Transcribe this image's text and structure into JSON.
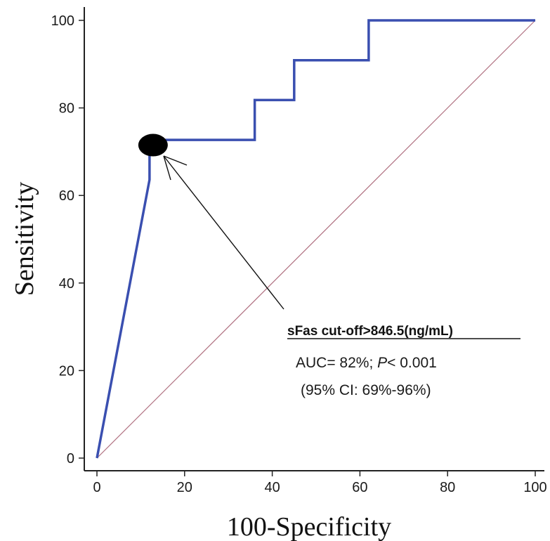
{
  "chart_data": {
    "type": "line",
    "xlabel": "100-Specificity",
    "ylabel": "Sensitivity",
    "xlim": [
      0,
      100
    ],
    "ylim": [
      0,
      100
    ],
    "x_ticks": [
      0,
      20,
      40,
      60,
      80,
      100
    ],
    "y_ticks": [
      0,
      20,
      40,
      60,
      80,
      100
    ],
    "grid": false,
    "series": [
      {
        "color": "#3a4fb0",
        "points": [
          {
            "x": 0,
            "y": 0
          },
          {
            "x": 12,
            "y": 63.6
          },
          {
            "x": 12,
            "y": 72.7
          },
          {
            "x": 36,
            "y": 72.7
          },
          {
            "x": 36,
            "y": 81.8
          },
          {
            "x": 45,
            "y": 81.8
          },
          {
            "x": 45,
            "y": 90.9
          },
          {
            "x": 62,
            "y": 90.9
          },
          {
            "x": 62,
            "y": 100
          },
          {
            "x": 100,
            "y": 100
          }
        ]
      }
    ],
    "reference_line": {
      "from": [
        0,
        0
      ],
      "to": [
        100,
        100
      ],
      "color": "#b07080"
    },
    "cutoff_point": {
      "x": 12.8,
      "y": 71.5
    },
    "annotation": {
      "title": "sFas cut-off>846.5(ng/mL)",
      "line1_prefix": "AUC= 82%; ",
      "line1_italic": "P",
      "line1_suffix": "< 0.001",
      "line2": "(95% CI: 69%-96%)"
    }
  }
}
